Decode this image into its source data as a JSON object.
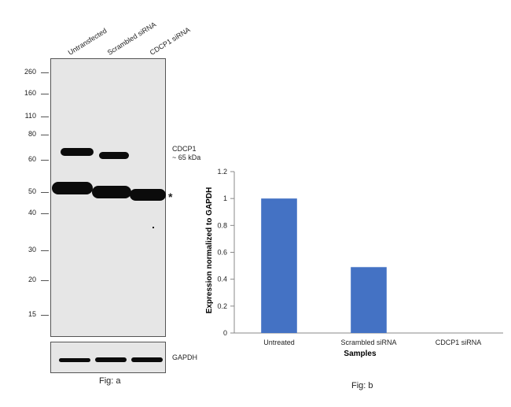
{
  "panel_a": {
    "lane_labels": [
      "Untransfected",
      "Scrambled siRNA",
      "CDCP1 siRNA"
    ],
    "mw_markers": [
      "260",
      "160",
      "110",
      "80",
      "60",
      "50",
      "40",
      "30",
      "20",
      "15"
    ],
    "band_label_line1": "CDCP1",
    "band_label_line2": "~ 65 kDa",
    "asterisk": "*",
    "loading_control_label": "GAPDH",
    "caption": "Fig: a"
  },
  "panel_b": {
    "caption": "Fig: b"
  },
  "chart_data": {
    "type": "bar",
    "categories": [
      "Untreated",
      "Scrambled siRNA",
      "CDCP1 siRNA"
    ],
    "values": [
      1.0,
      0.49,
      0
    ],
    "title": "",
    "xlabel": "Samples",
    "ylabel": "Expression normalized to GAPDH",
    "ylim": [
      0,
      1.2
    ],
    "yticks": [
      "0",
      "0.2",
      "0.4",
      "0.6",
      "0.8",
      "1",
      "1.2"
    ],
    "grid": false,
    "bar_color": "#4472C4"
  }
}
